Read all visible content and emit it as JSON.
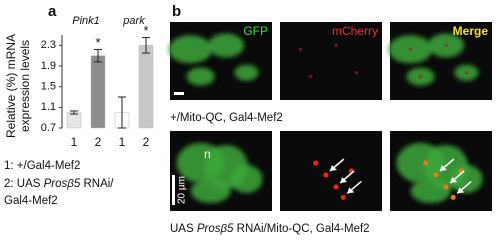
{
  "chart_data": {
    "type": "bar",
    "panel_label": "a",
    "y_title": [
      "Relative (%) mRNA",
      "expression levels"
    ],
    "groups": [
      "Pink1",
      "park"
    ],
    "categories": [
      "1",
      "2",
      "1",
      "2"
    ],
    "values": [
      1.0,
      2.1,
      1.0,
      2.3
    ],
    "errors": [
      0.03,
      0.12,
      0.3,
      0.15
    ],
    "colors": [
      "#e6e6e6",
      "#8c8c8c",
      "#ffffff",
      "#c8c8c8"
    ],
    "significance": [
      null,
      "*",
      null,
      "*"
    ],
    "ylim": [
      0.7,
      2.5
    ],
    "yticks": [
      0.7,
      1.1,
      1.5,
      1.9,
      2.3
    ],
    "legend_lines": [
      [
        "1: +/Gal4-Mef2"
      ],
      [
        "2: UAS ",
        "Prosβ5",
        " RNAi/"
      ],
      [
        "Gal4-Mef2"
      ]
    ]
  },
  "panel_b": {
    "label": "b",
    "channels": [
      "GFP",
      "mCherry",
      "Merge"
    ],
    "rows": [
      {
        "caption": [
          "+/Mito-QC, Gal4-Mef2"
        ]
      },
      {
        "caption": [
          "UAS ",
          "Prosβ5",
          " RNAi/Mito-QC, Gal4-Mef2"
        ]
      }
    ],
    "nucleus_label": "n",
    "scale_bar_label": "20 µm"
  }
}
